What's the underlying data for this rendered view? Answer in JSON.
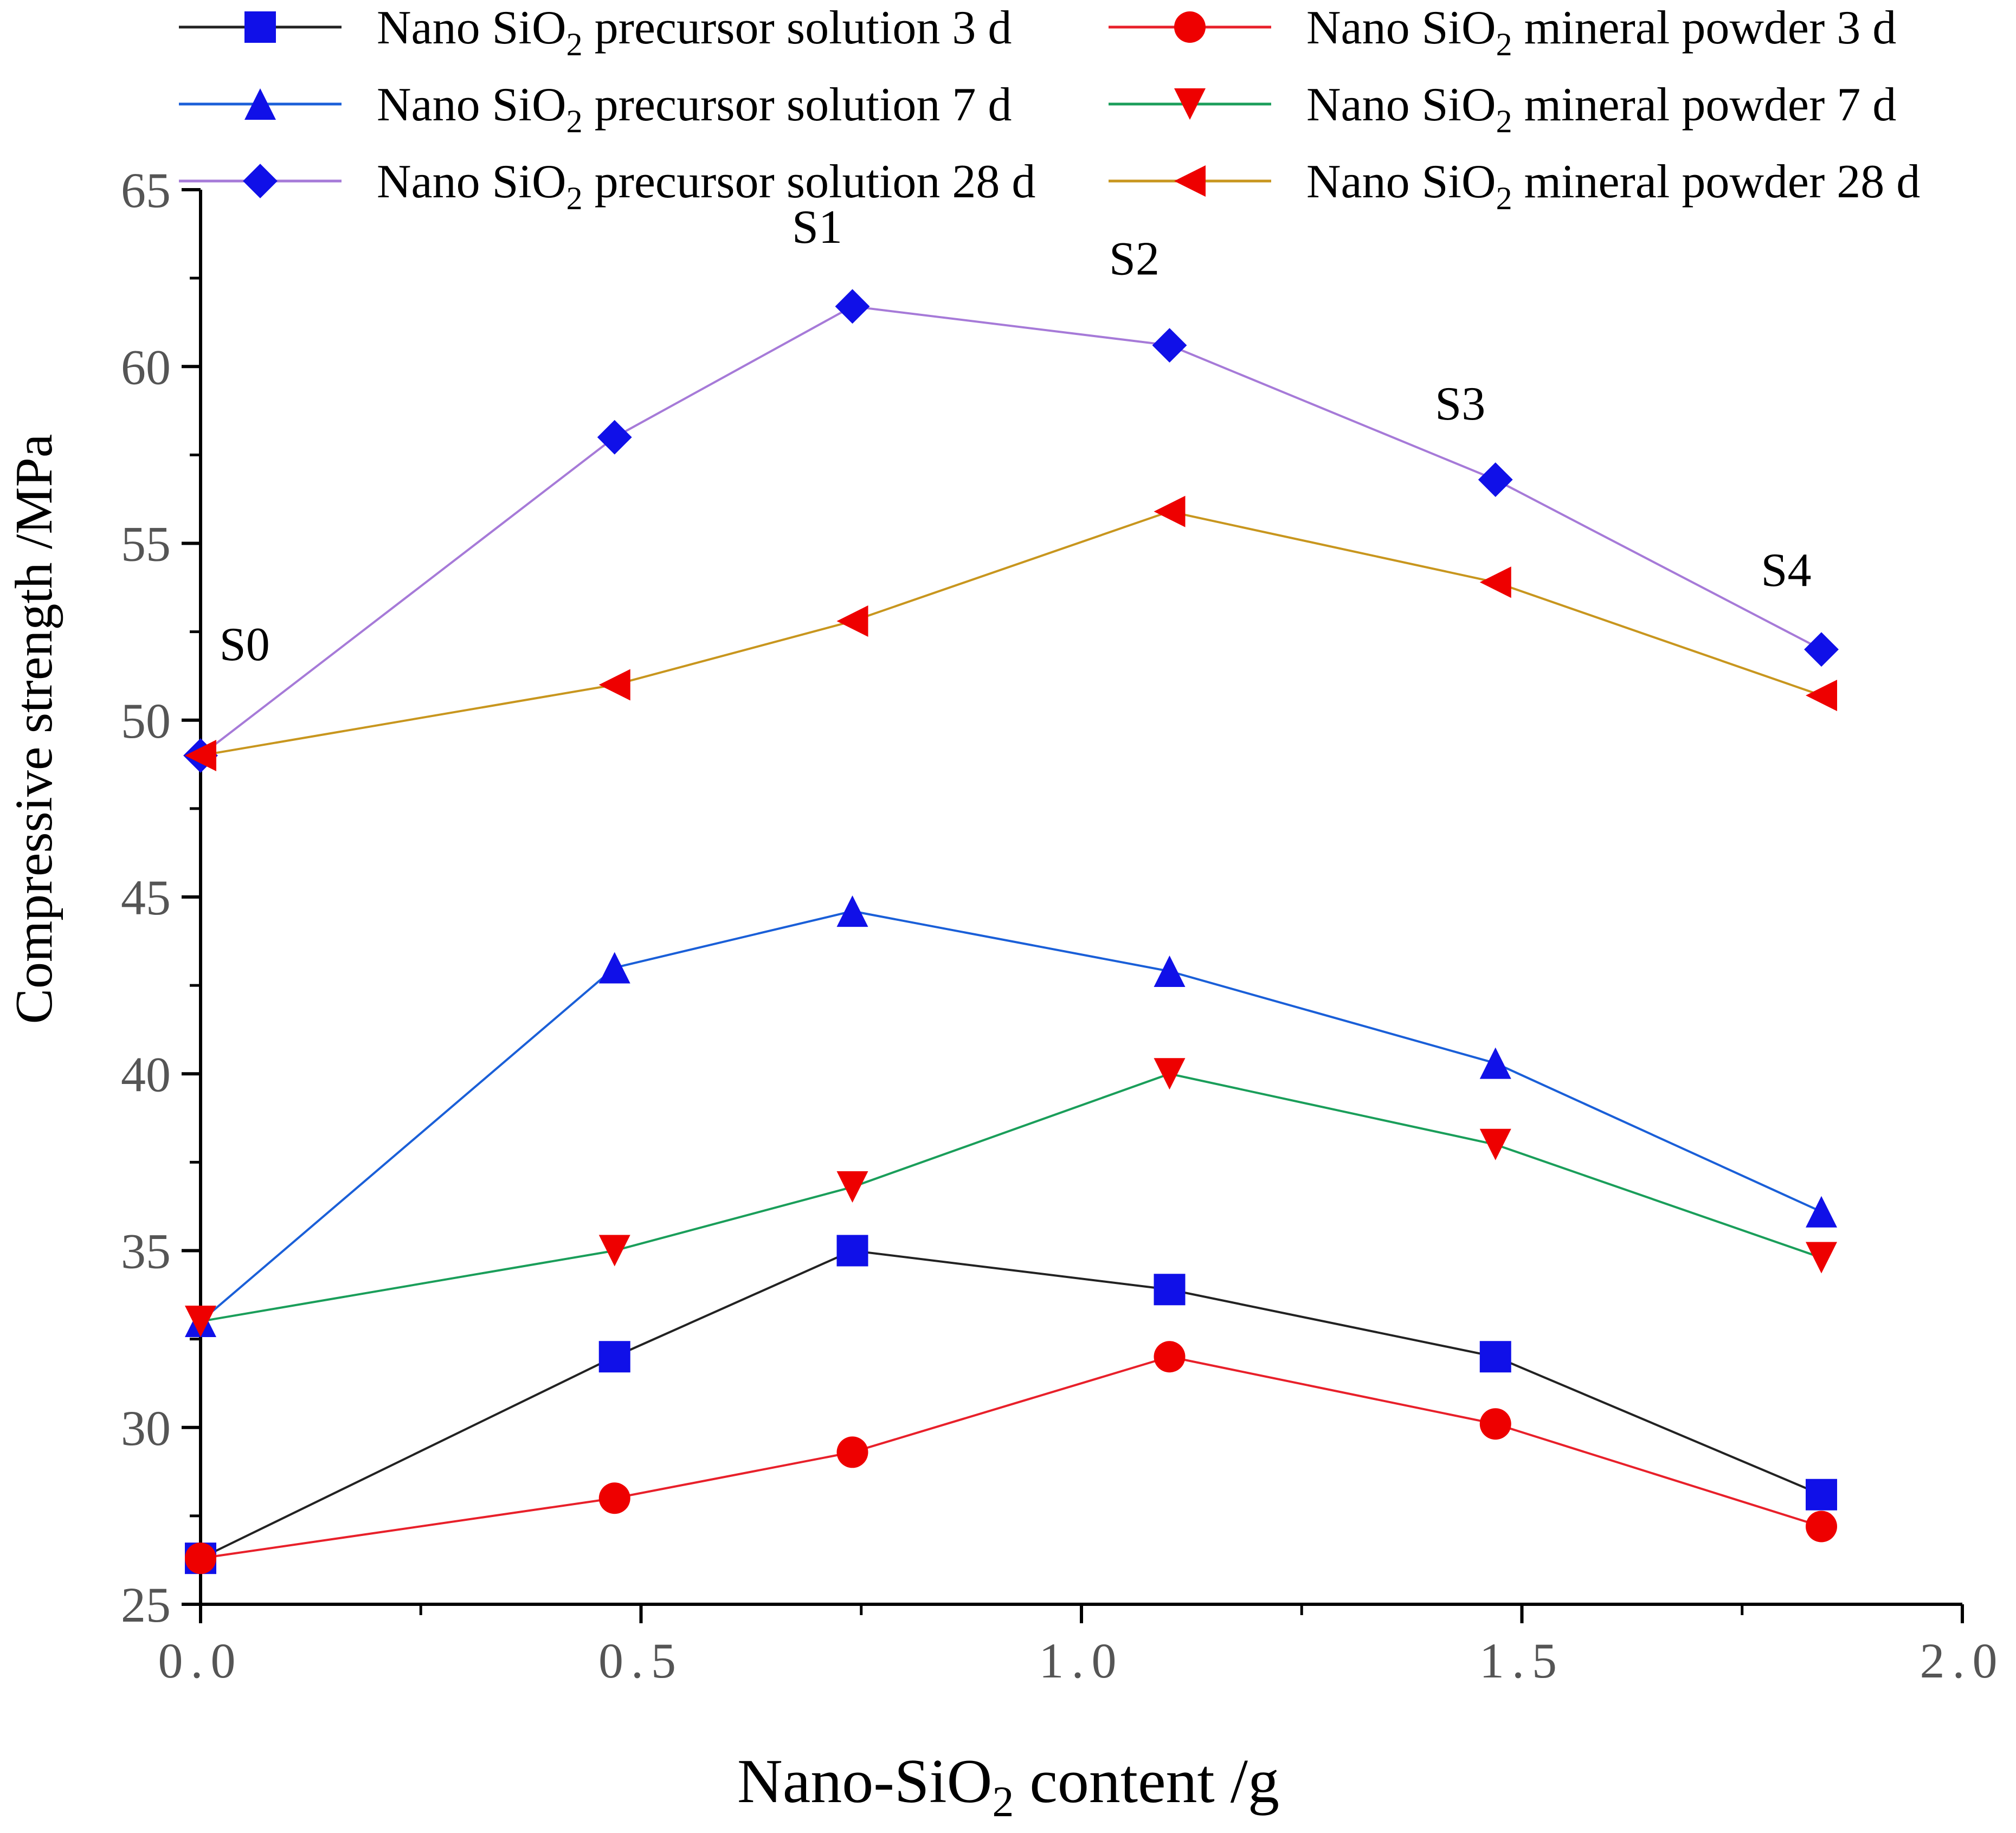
{
  "chart_data": {
    "type": "line",
    "title": "",
    "xlabel_prefix": "Nano-SiO",
    "xlabel_sub": "2",
    "xlabel_suffix": " content /g",
    "ylabel": "Compressive strength /MPa",
    "xlim": [
      0.0,
      2.0
    ],
    "ylim": [
      25,
      65
    ],
    "xticks": [
      0.0,
      0.5,
      1.0,
      1.5,
      2.0
    ],
    "xtick_labels": [
      "0.0",
      "0.5",
      "1.0",
      "1.5",
      "2.0"
    ],
    "yticks": [
      25,
      30,
      35,
      40,
      45,
      50,
      55,
      60,
      65
    ],
    "ytick_labels": [
      "25",
      "30",
      "35",
      "40",
      "45",
      "50",
      "55",
      "60",
      "65"
    ],
    "x": [
      0.0,
      0.47,
      0.74,
      1.1,
      1.47,
      1.84
    ],
    "series": [
      {
        "name": "Nano SiO2 precursor solution 3 d",
        "legend_pre": "Nano SiO",
        "legend_sub": "2",
        "legend_post": " precursor solution 3 d",
        "line_color": "#222222",
        "marker_color": "#1010e8",
        "marker": "square",
        "values": [
          26.3,
          32.0,
          35.0,
          33.9,
          32.0,
          28.1
        ]
      },
      {
        "name": "Nano SiO2 mineral powder 3 d",
        "legend_pre": "Nano SiO",
        "legend_sub": "2",
        "legend_post": " mineral powder 3 d",
        "line_color": "#e8202a",
        "marker_color": "#ee0000",
        "marker": "circle",
        "values": [
          26.3,
          28.0,
          29.3,
          32.0,
          30.1,
          27.2
        ]
      },
      {
        "name": "Nano SiO2 precursor solution 7 d",
        "legend_pre": "Nano SiO",
        "legend_sub": "2",
        "legend_post": " precursor solution 7 d",
        "line_color": "#1a5fd8",
        "marker_color": "#1010e8",
        "marker": "triangle-up",
        "values": [
          33.0,
          43.0,
          44.6,
          42.9,
          40.3,
          36.1
        ]
      },
      {
        "name": "Nano SiO2 mineral powder 7 d",
        "legend_pre": "Nano SiO",
        "legend_sub": "2",
        "legend_post": " mineral powder 7 d",
        "line_color": "#1a9e5a",
        "marker_color": "#ee0000",
        "marker": "triangle-down",
        "values": [
          33.0,
          35.0,
          36.8,
          40.0,
          38.0,
          34.8
        ]
      },
      {
        "name": "Nano SiO2 precursor solution 28 d",
        "legend_pre": "Nano SiO",
        "legend_sub": "2",
        "legend_post": " precursor solution 28 d",
        "line_color": "#a67ad8",
        "marker_color": "#1010e8",
        "marker": "diamond",
        "values": [
          49.0,
          58.0,
          61.7,
          60.6,
          56.8,
          52.0
        ]
      },
      {
        "name": "Nano SiO2 mineral powder 28 d",
        "legend_pre": "Nano SiO",
        "legend_sub": "2",
        "legend_post": " mineral powder 28 d",
        "line_color": "#c8961e",
        "marker_color": "#ee0000",
        "marker": "triangle-left",
        "values": [
          49.0,
          51.0,
          52.8,
          55.9,
          53.9,
          50.7
        ]
      }
    ],
    "annotations": [
      {
        "text": "S0",
        "x": 0.05,
        "y": 51.7
      },
      {
        "text": "S1",
        "x": 0.7,
        "y": 63.5
      },
      {
        "text": "S2",
        "x": 1.06,
        "y": 62.6
      },
      {
        "text": "S3",
        "x": 1.43,
        "y": 58.5
      },
      {
        "text": "S4",
        "x": 1.8,
        "y": 53.8
      }
    ],
    "legend_position": "top"
  }
}
